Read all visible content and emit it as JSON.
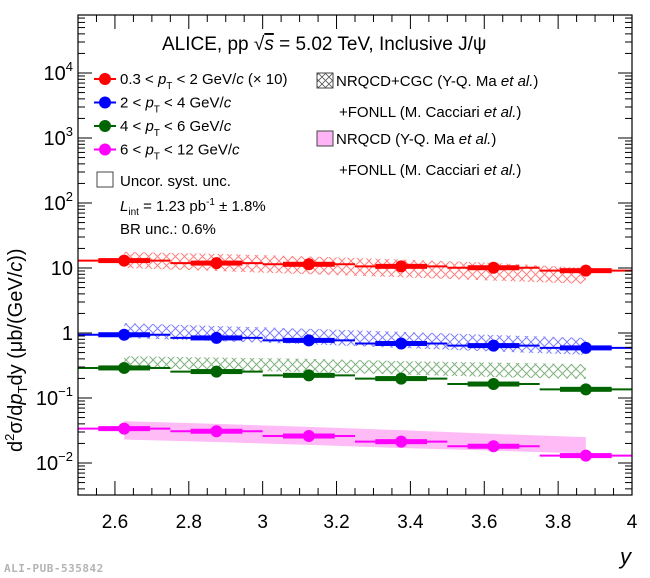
{
  "chart_data": {
    "type": "scatter",
    "title": "ALICE, pp √s = 5.02 TeV, Inclusive J/ψ",
    "title_parts": {
      "pre": "ALICE, pp ",
      "sqrt": "√",
      "s": "s",
      "post": " = 5.02 TeV, Inclusive J/ψ"
    },
    "xlabel": "y",
    "ylabel": "d²σ/dp_T dy (μb/(GeV/c))",
    "ylabel_parts": {
      "d": "d",
      "sup": "2",
      "sigma": "σ/d",
      "p": "p",
      "sub": "T",
      "post": "dy (μb/(GeV/",
      "c": "c",
      "end": "))"
    },
    "xlim": [
      2.5,
      4.0
    ],
    "ylim": [
      0.0032,
      78000
    ],
    "yscale": "log",
    "grid": false,
    "legend_placement": "top",
    "x_ticks": [
      "2.6",
      "2.8",
      "3",
      "3.2",
      "3.4",
      "3.6",
      "3.8",
      "4"
    ],
    "y_ticks": [
      {
        "base": "10",
        "exp": "−2"
      },
      {
        "base": "10",
        "exp": "−1"
      },
      {
        "base": "1",
        "exp": ""
      },
      {
        "base": "10",
        "exp": ""
      },
      {
        "base": "10",
        "exp": "2"
      },
      {
        "base": "10",
        "exp": "3"
      },
      {
        "base": "10",
        "exp": "4"
      }
    ],
    "bin_edges": [
      2.5,
      2.75,
      3.0,
      3.25,
      3.5,
      3.75,
      4.0
    ],
    "x": [
      2.625,
      2.875,
      3.125,
      3.375,
      3.625,
      3.875
    ],
    "series": [
      {
        "name": "0.3 < pT < 2 GeV/c (× 10)",
        "color": "#ff0000",
        "values": [
          13.0,
          11.9,
          11.4,
          10.6,
          10.1,
          9.1
        ],
        "model_band": {
          "type": "hatched",
          "low": [
            10.0,
            9.0,
            8.0,
            7.2,
            6.4,
            5.7
          ],
          "high": [
            17.7,
            16.5,
            15.0,
            13.5,
            12.0,
            10.0
          ]
        }
      },
      {
        "name": "2 < pT < 4 GeV/c",
        "color": "#0000ff",
        "values": [
          0.94,
          0.84,
          0.77,
          0.69,
          0.64,
          0.59
        ],
        "model_band": {
          "type": "hatched",
          "low": [
            0.84,
            0.75,
            0.67,
            0.59,
            0.52,
            0.46
          ],
          "high": [
            1.42,
            1.28,
            1.16,
            1.04,
            0.93,
            0.84
          ]
        }
      },
      {
        "name": "4 < pT < 6 GeV/c",
        "color": "#006400",
        "values": [
          0.29,
          0.255,
          0.223,
          0.199,
          0.164,
          0.136
        ],
        "model_band": {
          "type": "hatched",
          "low": [
            0.29,
            0.27,
            0.25,
            0.23,
            0.21,
            0.196
          ],
          "high": [
            0.44,
            0.42,
            0.4,
            0.37,
            0.35,
            0.33
          ]
        }
      },
      {
        "name": "6 < pT < 12 GeV/c",
        "color": "#ff00ff",
        "values": [
          0.0338,
          0.0308,
          0.026,
          0.0213,
          0.0181,
          0.013
        ],
        "model_band": {
          "type": "filled",
          "low": [
            0.023,
            0.021,
            0.019,
            0.017,
            0.0155,
            0.014
          ],
          "high": [
            0.044,
            0.04,
            0.036,
            0.032,
            0.028,
            0.025
          ]
        }
      }
    ]
  },
  "legend": {
    "entries": [
      {
        "pre": "0.3 < ",
        "p": "p",
        "sub": "T",
        "mid": " < 2 GeV/",
        "c": "c",
        "post": " (× 10)"
      },
      {
        "pre": "2 < ",
        "p": "p",
        "sub": "T",
        "mid": " < 4 GeV/",
        "c": "c",
        "post": ""
      },
      {
        "pre": "4 < ",
        "p": "p",
        "sub": "T",
        "mid": " < 6 GeV/",
        "c": "c",
        "post": ""
      },
      {
        "pre": "6 < ",
        "p": "p",
        "sub": "T",
        "mid": " < 12 GeV/",
        "c": "c",
        "post": ""
      }
    ],
    "syst": "Uncor. syst. unc.",
    "lumi": {
      "L": "L",
      "sub": "int",
      "mid": " = 1.23 pb",
      "sup": "-1",
      "post": " ± 1.8%"
    },
    "br": "BR unc.: 0.6%",
    "models": [
      {
        "line1": "NRQCD+CGC (Y-Q. Ma ",
        "etal1": "et al.",
        "close1": ")",
        "line2": "+FONLL (M. Cacciari ",
        "etal2": "et al.",
        "close2": ")",
        "color": "#808080"
      },
      {
        "line1": "NRQCD (Y-Q. Ma ",
        "etal1": "et al.",
        "close1": ")",
        "line2": "+FONLL (M. Cacciari ",
        "etal2": "et al.",
        "close2": ")",
        "color": "#ffb4f5"
      }
    ]
  },
  "watermark": "ALI-PUB-535842"
}
